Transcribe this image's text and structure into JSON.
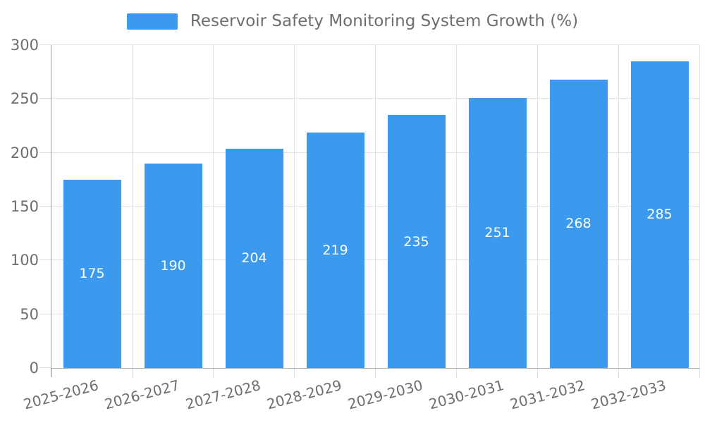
{
  "chart_data": {
    "type": "bar",
    "title": "Reservoir Safety Monitoring System Growth (%)",
    "series_name": "Reservoir Safety Monitoring System Growth (%)",
    "categories": [
      "2025-2026",
      "2026-2027",
      "2027-2028",
      "2028-2029",
      "2029-2030",
      "2030-2031",
      "2031-2032",
      "2032-2033"
    ],
    "values": [
      175,
      190,
      204,
      219,
      235,
      251,
      268,
      285
    ],
    "value_labels": [
      "175",
      "190",
      "204",
      "219",
      "235",
      "251",
      "268",
      "285"
    ],
    "xlabel": "",
    "ylabel": "",
    "ylim": [
      0,
      300
    ],
    "ytick_step": 50,
    "ytick_labels": [
      "0",
      "50",
      "100",
      "150",
      "200",
      "250",
      "300"
    ],
    "grid": "on",
    "legend_position": "top-center",
    "x_label_rotation_deg": -15,
    "colors": {
      "bar": "#3b99ee",
      "value_label": "#ffffff",
      "text": "#6e6e6e",
      "gridline": "#e3e3e3",
      "tick": "#e0e0e0",
      "y_axis_line": "#999999",
      "x_axis_line": "#b3b3b3",
      "background": "#ffffff"
    }
  }
}
